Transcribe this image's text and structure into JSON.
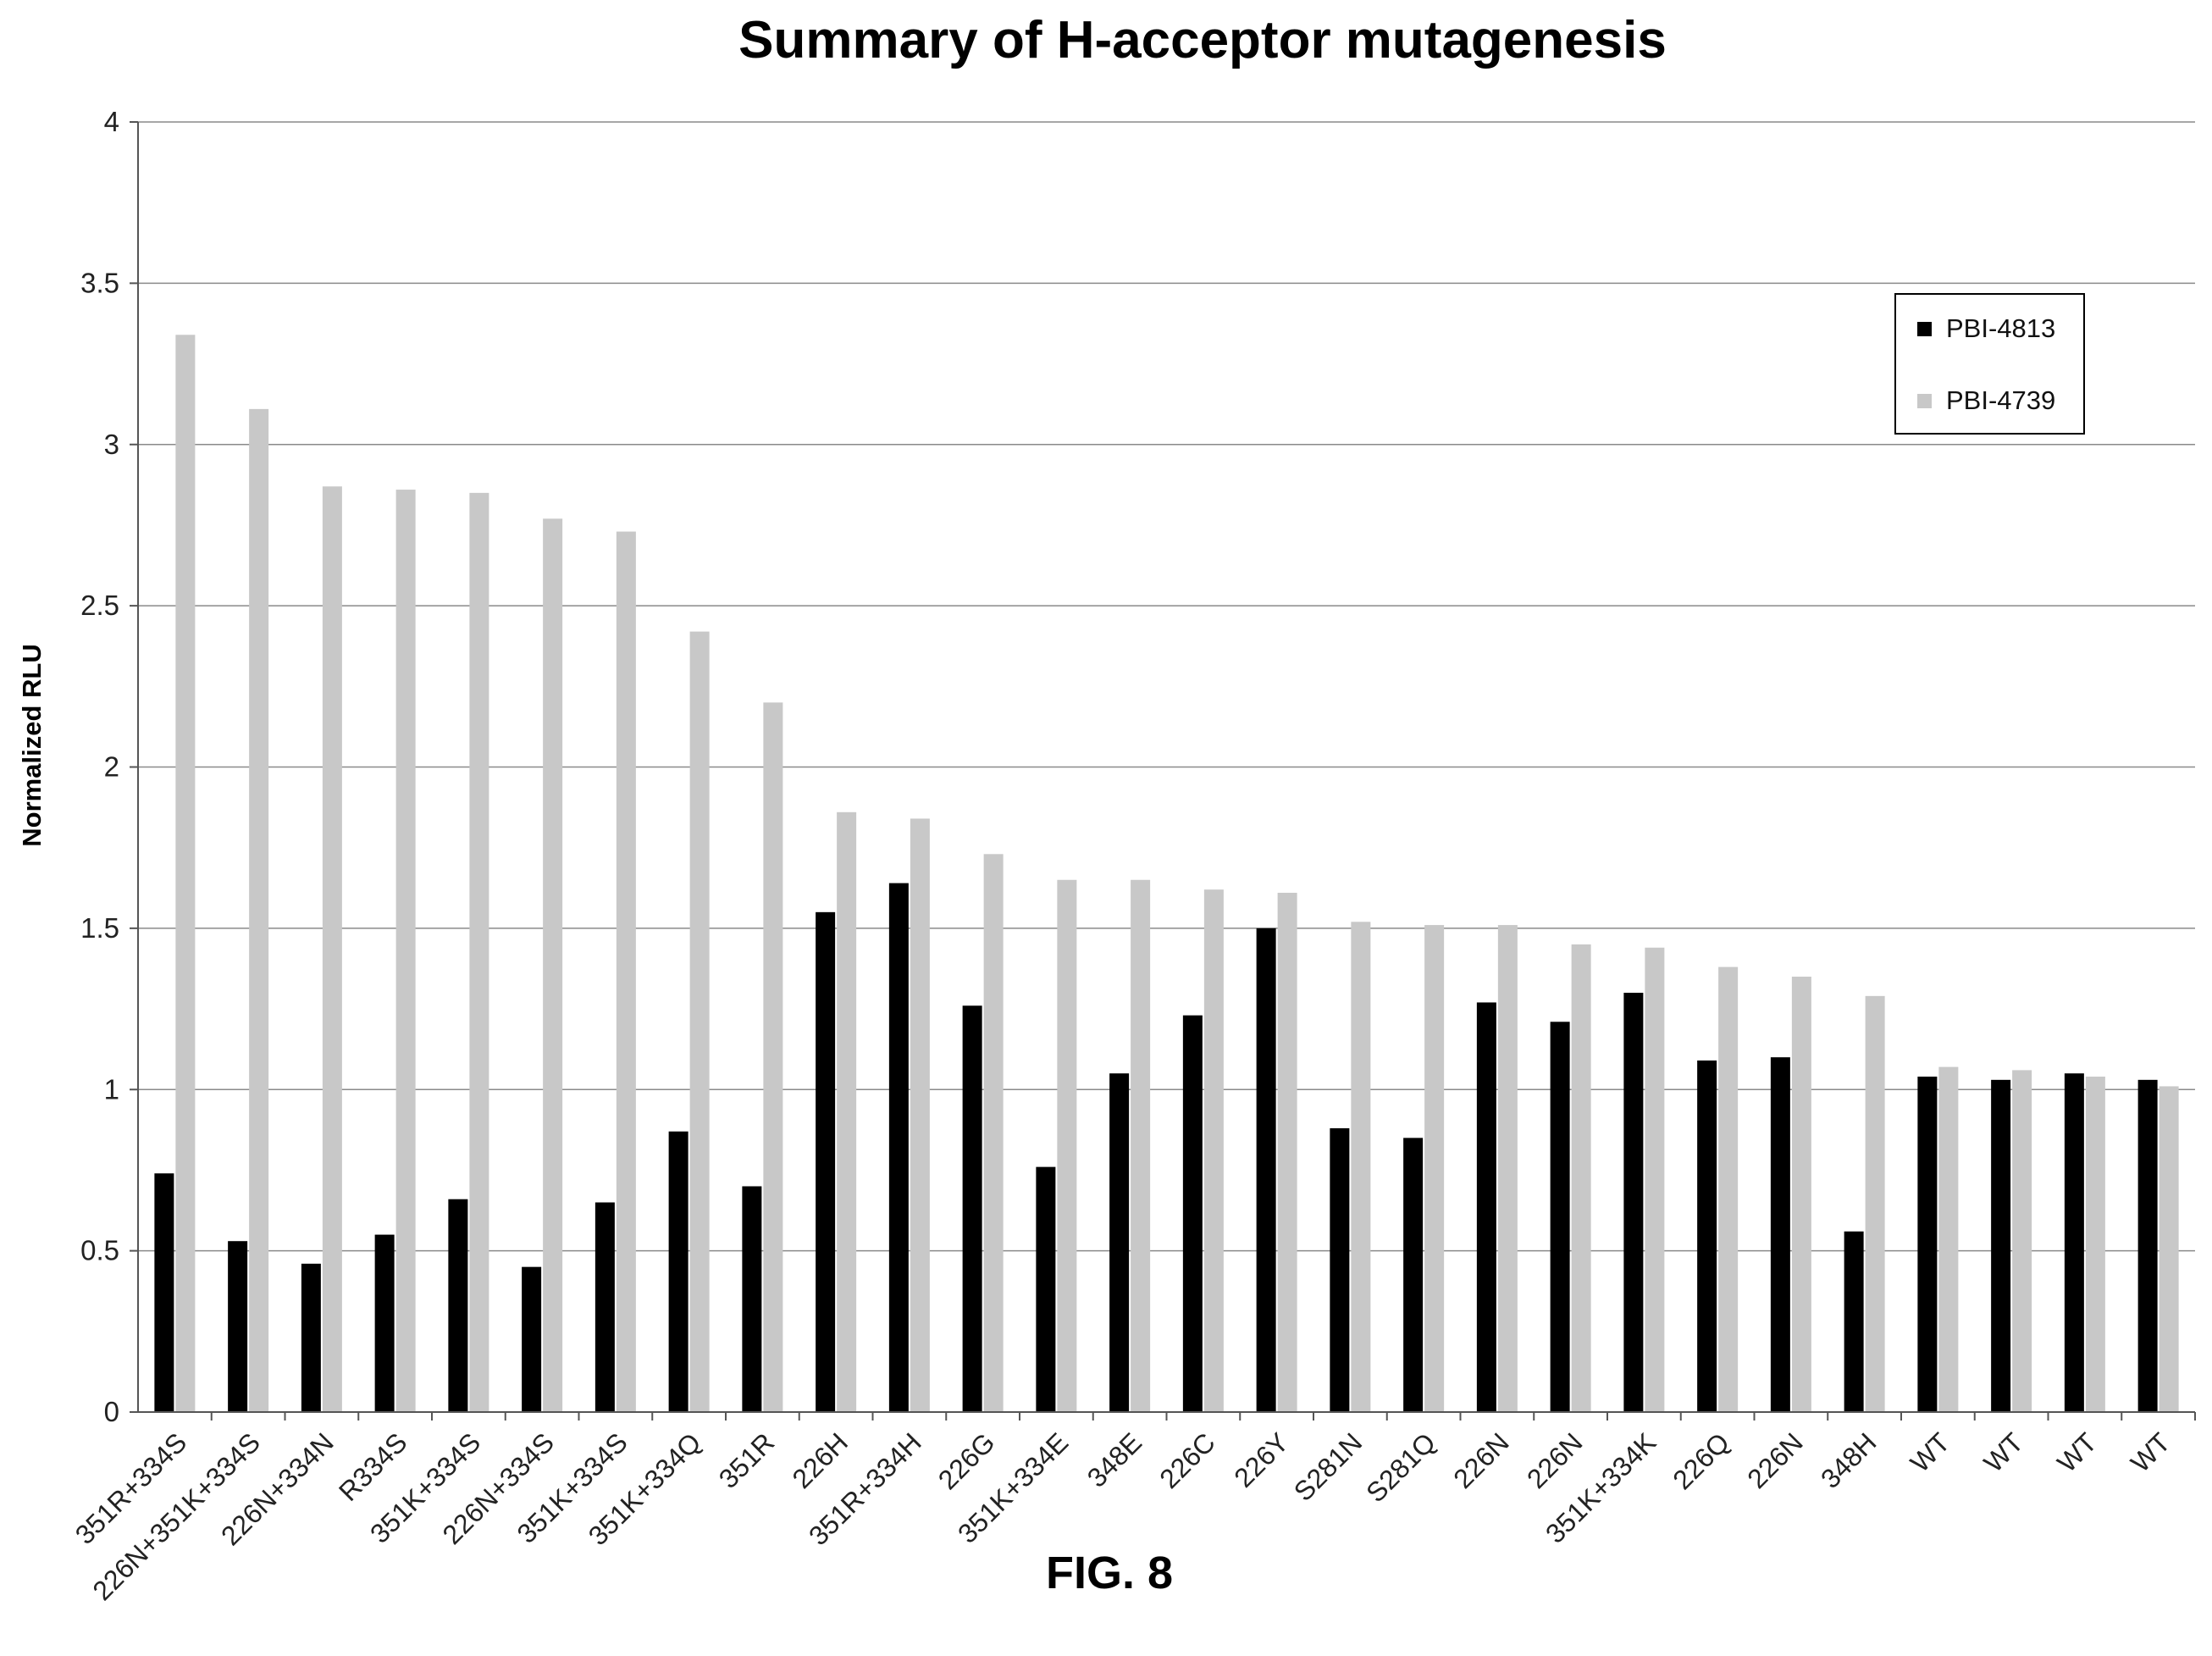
{
  "figure": {
    "caption": "FIG. 8"
  },
  "chart_data": {
    "type": "bar",
    "title": "Summary of H-acceptor mutagenesis",
    "xlabel": "",
    "ylabel": "Normalized RLU",
    "ylim": [
      0,
      4
    ],
    "yticks": [
      "0",
      "0.5",
      "1",
      "1.5",
      "2",
      "2.5",
      "3",
      "3.5",
      "4"
    ],
    "grid": true,
    "legend_position": "top-right",
    "categories": [
      "351R+334S",
      "226N+351K+334S",
      "226N+334N",
      "R334S",
      "351K+334S",
      "226N+334S",
      "351K+334S",
      "351K+334Q",
      "351R",
      "226H",
      "351R+334H",
      "226G",
      "351K+334E",
      "348E",
      "226C",
      "226Y",
      "S281N",
      "S281Q",
      "226N",
      "226N",
      "351K+334K",
      "226Q",
      "226N",
      "348H",
      "WT",
      "WT",
      "WT",
      "WT"
    ],
    "series": [
      {
        "name": "PBI-4813",
        "color": "#000000",
        "values": [
          0.74,
          0.53,
          0.46,
          0.55,
          0.66,
          0.45,
          0.65,
          0.87,
          0.7,
          1.55,
          1.64,
          1.26,
          0.76,
          1.05,
          1.23,
          1.5,
          0.88,
          0.85,
          1.27,
          1.21,
          1.3,
          1.09,
          1.1,
          0.56,
          1.04,
          1.03,
          1.05,
          1.03
        ]
      },
      {
        "name": "PBI-4739",
        "color": "#c8c8c8",
        "values": [
          3.34,
          3.11,
          2.87,
          2.86,
          2.85,
          2.77,
          2.73,
          2.42,
          2.2,
          1.86,
          1.84,
          1.73,
          1.65,
          1.65,
          1.62,
          1.61,
          1.52,
          1.51,
          1.51,
          1.45,
          1.44,
          1.38,
          1.35,
          1.29,
          1.07,
          1.06,
          1.04,
          1.01
        ]
      }
    ]
  }
}
